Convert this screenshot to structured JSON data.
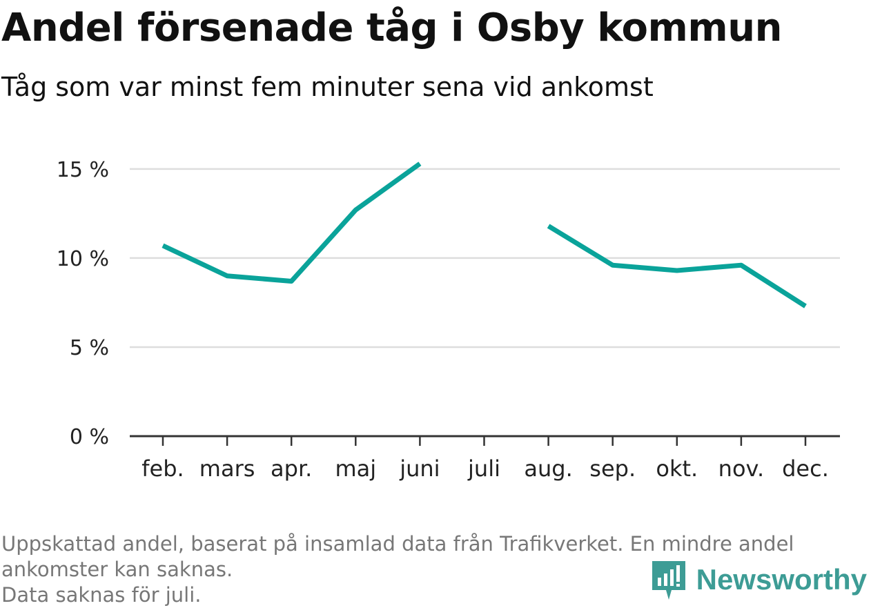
{
  "title": "Andel försenade tåg i Osby kommun",
  "subtitle": "Tåg som var minst fem minuter sena vid ankomst",
  "footnote": {
    "line1": "Uppskattad andel, baserat på insamlad data från Trafikverket. En mindre andel",
    "line2": "ankomster kan saknas.",
    "line3": "Data saknas för juli."
  },
  "brand": {
    "name": "Newsworthy",
    "icon": "newsworthy-logo-icon"
  },
  "colors": {
    "line": "#0aa39a",
    "grid": "#dddddd",
    "axis": "#333333",
    "brand": "#3d9c95"
  },
  "chart_data": {
    "type": "line",
    "categories": [
      "feb.",
      "mars",
      "apr.",
      "maj",
      "juni",
      "juli",
      "aug.",
      "sep.",
      "okt.",
      "nov.",
      "dec."
    ],
    "series": [
      {
        "values": [
          10.7,
          9.0,
          8.7,
          12.7,
          15.3,
          null,
          11.8,
          9.6,
          9.3,
          9.6,
          7.3
        ]
      }
    ],
    "ylim": [
      0,
      15.5
    ],
    "yticks": [
      {
        "value": 0,
        "label": "0 %"
      },
      {
        "value": 5,
        "label": "5 %"
      },
      {
        "value": 10,
        "label": "10 %"
      },
      {
        "value": 15,
        "label": "15 %"
      }
    ],
    "grid": true,
    "legend": "none"
  }
}
